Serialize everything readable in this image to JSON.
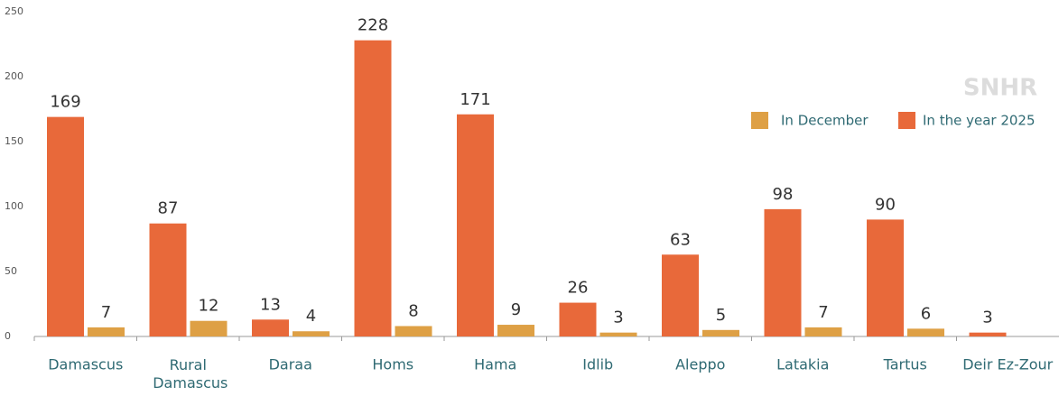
{
  "chart_data": {
    "type": "bar",
    "categories": [
      "Damascus",
      "Rural Damascus",
      "Daraa",
      "Homs",
      "Hama",
      "Idlib",
      "Aleppo",
      "Latakia",
      "Tartus",
      "Deir Ez-Zour"
    ],
    "series": [
      {
        "name": "In the year 2025",
        "color": "#e8693a",
        "values": [
          169,
          87,
          13,
          228,
          171,
          26,
          63,
          98,
          90,
          3
        ]
      },
      {
        "name": "In December",
        "color": "#dea045",
        "values": [
          7,
          12,
          4,
          8,
          9,
          3,
          5,
          7,
          6,
          null
        ]
      }
    ],
    "legend_order": [
      1,
      0
    ],
    "ylim": [
      0,
      250
    ],
    "yticks": [
      0,
      50,
      100,
      150,
      200,
      250
    ],
    "grid": false,
    "watermark": "SNHR"
  }
}
